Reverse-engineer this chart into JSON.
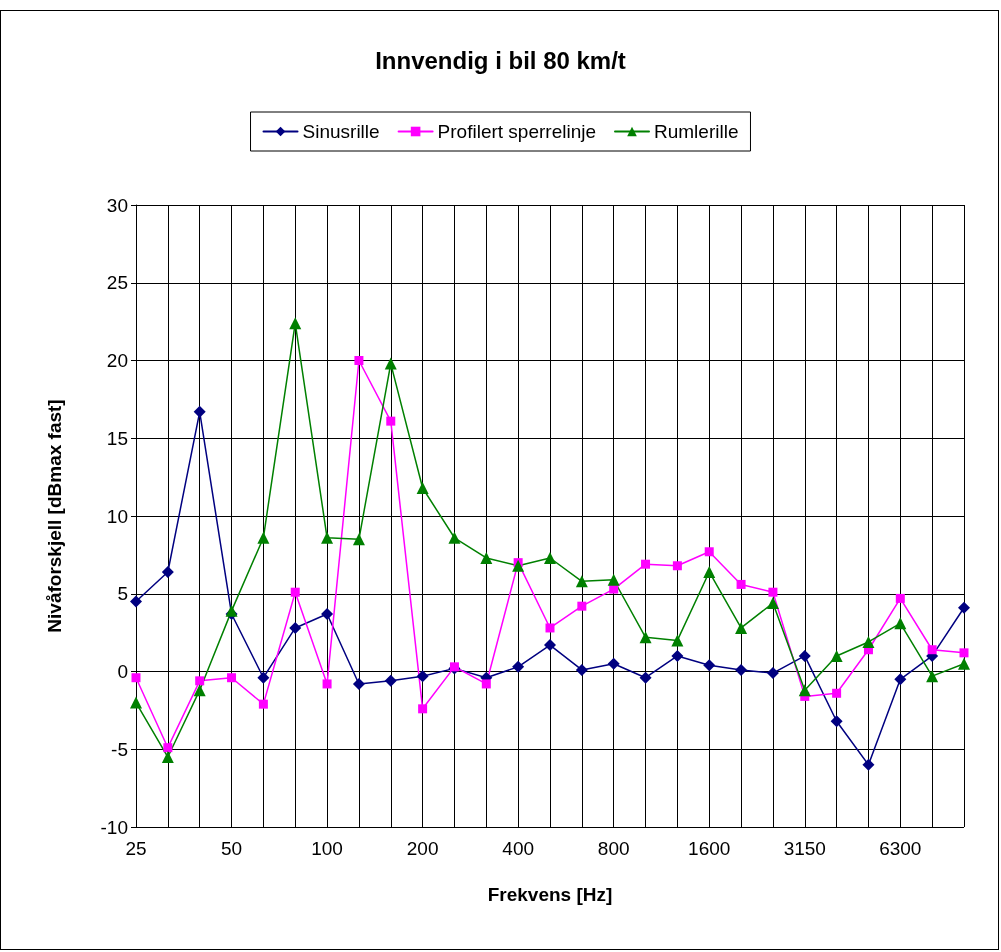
{
  "chart_data": {
    "type": "line",
    "title": "Innvendig i bil 80 km/t",
    "xlabel": "Frekvens [Hz]",
    "ylabel": "Nivåforskjell [dBmax fast]",
    "categories": [
      "25",
      null,
      null,
      "50",
      null,
      null,
      "100",
      null,
      null,
      "200",
      null,
      null,
      "400",
      null,
      null,
      "800",
      null,
      null,
      "1600",
      null,
      null,
      "3150",
      null,
      null,
      "6300",
      null,
      null
    ],
    "series": [
      {
        "name": "Sinusrille",
        "color": "#000080",
        "marker": "diamond",
        "values": [
          4.5,
          6.4,
          16.7,
          3.7,
          -0.4,
          2.8,
          3.7,
          -0.8,
          -0.6,
          -0.3,
          0.2,
          -0.4,
          0.3,
          1.7,
          0.1,
          0.5,
          -0.4,
          1.0,
          0.4,
          0.1,
          -0.1,
          1.0,
          -3.2,
          -6.0,
          -0.5,
          1.0,
          4.1
        ]
      },
      {
        "name": "Profilert sperrelinje",
        "color": "#ff00ff",
        "marker": "square",
        "values": [
          -0.4,
          -4.9,
          -0.6,
          -0.4,
          -2.1,
          5.1,
          -0.8,
          20.0,
          16.1,
          -2.4,
          0.3,
          -0.8,
          7.0,
          2.8,
          4.2,
          5.3,
          6.9,
          6.8,
          7.7,
          5.6,
          5.1,
          -1.6,
          -1.4,
          1.4,
          4.7,
          1.4,
          1.2
        ]
      },
      {
        "name": "Rumlerille",
        "color": "#008000",
        "marker": "triangle",
        "values": [
          -2.0,
          -5.5,
          -1.2,
          3.9,
          8.6,
          22.4,
          8.6,
          8.5,
          19.8,
          11.8,
          8.6,
          7.3,
          6.8,
          7.3,
          5.8,
          5.9,
          2.2,
          2.0,
          6.4,
          2.8,
          4.4,
          -1.2,
          1.0,
          1.9,
          3.1,
          -0.3,
          0.5
        ]
      }
    ],
    "ylim": [
      -10,
      30
    ],
    "yticks": [
      -10,
      -5,
      0,
      5,
      10,
      15,
      20,
      25,
      30
    ],
    "grid": true,
    "legend": "top",
    "line_style": "solid"
  }
}
